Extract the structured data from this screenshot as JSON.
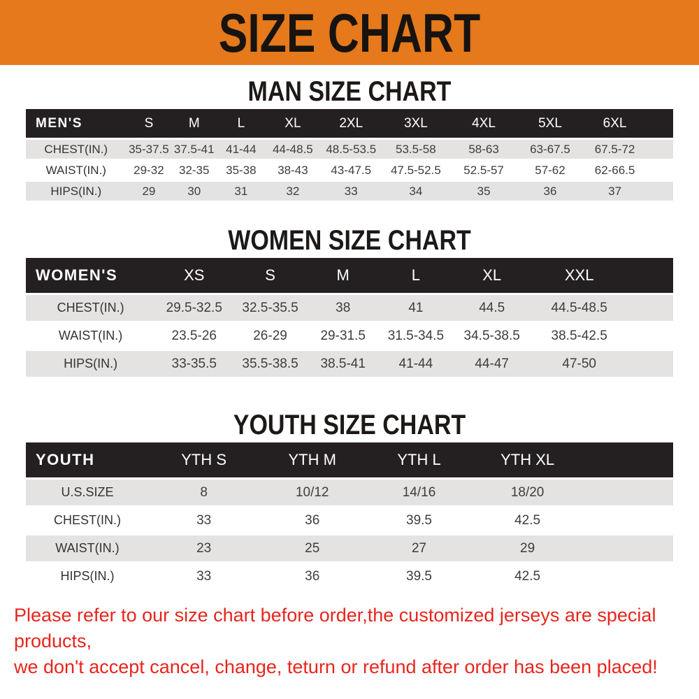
{
  "banner": {
    "title": "SIZE CHART"
  },
  "colors": {
    "banner_bg": "#E5791B",
    "header_row_bg": "#242021",
    "alt_row_bg": "#E4E3E1",
    "footer_red": "#E8251D"
  },
  "sections": [
    {
      "heading": "MAN SIZE CHART",
      "table": {
        "label": "MEN'S",
        "columns": [
          "S",
          "M",
          "L",
          "XL",
          "2XL",
          "3XL",
          "4XL",
          "5XL",
          "6XL"
        ],
        "rows": [
          {
            "label": "CHEST(IN.)",
            "values": [
              "35-37.5",
              "37.5-41",
              "41-44",
              "44-48.5",
              "48.5-53.5",
              "53.5-58",
              "58-63",
              "63-67.5",
              "67.5-72"
            ]
          },
          {
            "label": "WAIST(IN.)",
            "values": [
              "29-32",
              "32-35",
              "35-38",
              "38-43",
              "43-47.5",
              "47.5-52.5",
              "52.5-57",
              "57-62",
              "62-66.5"
            ]
          },
          {
            "label": "HIPS(IN.)",
            "values": [
              "29",
              "30",
              "31",
              "32",
              "33",
              "34",
              "35",
              "36",
              "37"
            ]
          }
        ]
      }
    },
    {
      "heading": "WOMEN SIZE CHART",
      "table": {
        "label": "WOMEN'S",
        "columns": [
          "XS",
          "S",
          "M",
          "L",
          "XL",
          "XXL"
        ],
        "rows": [
          {
            "label": "CHEST(IN.)",
            "values": [
              "29.5-32.5",
              "32.5-35.5",
              "38",
              "41",
              "44.5",
              "44.5-48.5"
            ]
          },
          {
            "label": "WAIST(IN.)",
            "values": [
              "23.5-26",
              "26-29",
              "29-31.5",
              "31.5-34.5",
              "34.5-38.5",
              "38.5-42.5"
            ]
          },
          {
            "label": "HIPS(IN.)",
            "values": [
              "33-35.5",
              "35.5-38.5",
              "38.5-41",
              "41-44",
              "44-47",
              "47-50"
            ]
          }
        ]
      }
    },
    {
      "heading": "YOUTH SIZE CHART",
      "table": {
        "label": "YOUTH",
        "columns": [
          "YTH S",
          "YTH M",
          "YTH L",
          "YTH XL"
        ],
        "rows": [
          {
            "label": "U.S.SIZE",
            "values": [
              "8",
              "10/12",
              "14/16",
              "18/20"
            ]
          },
          {
            "label": "CHEST(IN.)",
            "values": [
              "33",
              "36",
              "39.5",
              "42.5"
            ]
          },
          {
            "label": "WAIST(IN.)",
            "values": [
              "23",
              "25",
              "27",
              "29"
            ]
          },
          {
            "label": "HIPS(IN.)",
            "values": [
              "33",
              "36",
              "39.5",
              "42.5"
            ]
          }
        ]
      }
    }
  ],
  "footer": {
    "line1": "Please refer to our size chart before order,the customized jerseys are special products,",
    "line2": "we don't accept cancel, change, teturn or refund after order has been placed!"
  }
}
